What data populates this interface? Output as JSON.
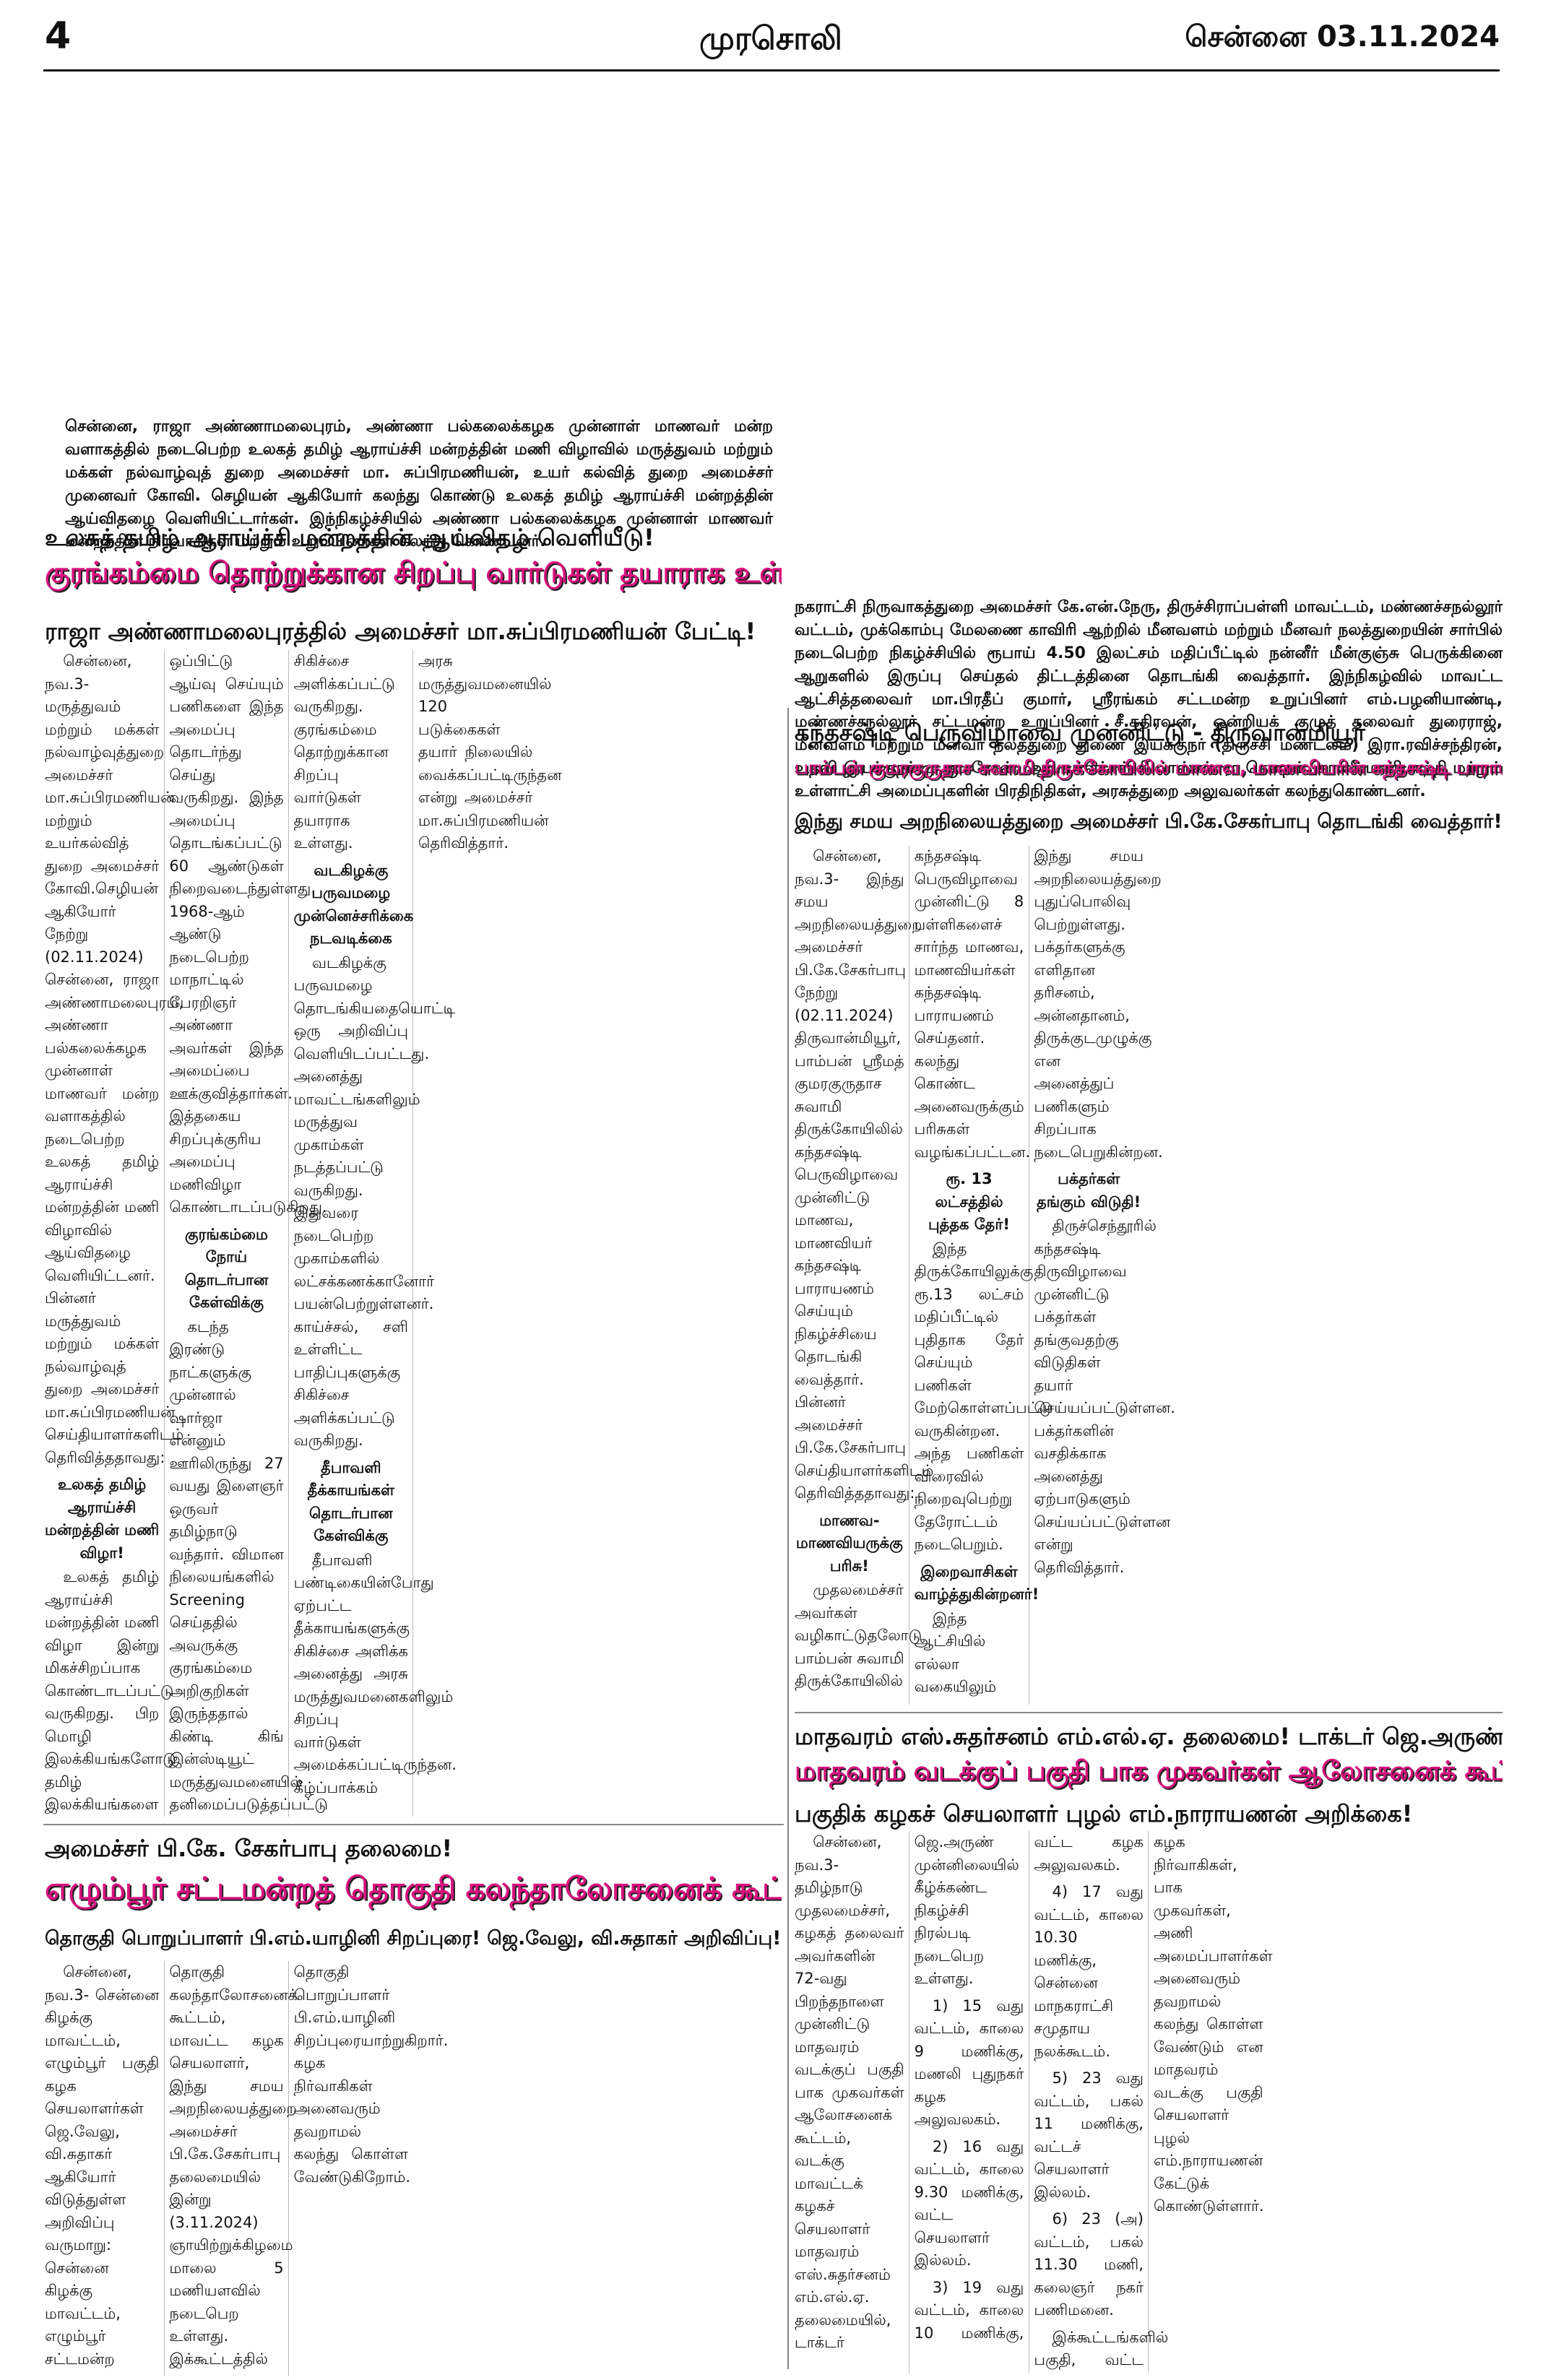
{
  "header": {
    "page_number": "4",
    "paper": "முரசொலி",
    "dateline": "சென்னை 03.11.2024"
  },
  "captions": [
    "சென்னை, ராஜா அண்ணாமலைபுரம், அண்ணா பல்கலைக்கழக முன்னாள் மாணவர் மன்ற வளாகத்தில் நடைபெற்ற உலகத் தமிழ் ஆராய்ச்சி மன்றத்தின் மணி விழாவில் மருத்துவம் மற்றும் மக்கள் நல்வாழ்வுத் துறை அமைச்சர் மா. சுப்பிரமணியன், உயர் கல்வித் துறை அமைச்சர் முனைவர் கோவி. செழியன் ஆகியோர் கலந்து கொண்டு உலகத் தமிழ் ஆராய்ச்சி மன்றத்தின் ஆய்விதழை வெளியிட்டார்கள். இந்நிகழ்ச்சியில் அண்ணா பல்கலைக்கழக முன்னாள் மாணவர் மன்றத்தின் நிர்வாகிகள் மற்றும் உறுப்பினர்கள் கலந்து கொண்டனர்.",
    "நகராட்சி நிருவாகத்துறை அமைச்சர் கே.என்.நேரு, திருச்சிராப்பள்ளி மாவட்டம், மண்ணச்சநல்லூர் வட்டம், முக்கொம்பு மேலணை காவிரி ஆற்றில் மீனவளம் மற்றும் மீனவர் நலத்துறையின் சார்பில் நடைபெற்ற நிகழ்ச்சியில் ரூபாய் 4.50 இலட்சம் மதிப்பீட்டில் நன்னீர் மீன்குஞ்சு பெருக்கினை ஆறுகளில் இருப்பு செய்தல் திட்டத்தினை தொடங்கி வைத்தார். இந்நிகழ்வில் மாவட்ட ஆட்சித்தலைவர் மா.பிரதீப் குமார், ஸ்ரீரங்கம் சட்டமன்ற உறுப்பினர் எம்.பழனியாண்டி, மண்ணச்சநல்லூர் சட்டமன்ற உறுப்பினர் சீ.கதிரவன், ஒன்றியக் குழுத் தலைவர் துரைராஜ், மீனவளம் மற்றும் மீனவர் நலத்துறை துணை இயக்குநர் (திருச்சி மண்டலம்) இரா.ரவிச்சந்திரன், உதவி இயக்குநர் மு.குமரேசன், ஆய்வாளர்கள் சி.பாஸ்கர், ரா.கௌதம், கா.வீரமணிமாறதி மற்றும் உள்ளாட்சி அமைப்புகளின் பிரதிநிதிகள், அரசுத்துறை அலுவலர்கள் கலந்துகொண்டனர்."
  ],
  "articles": [
    {
      "kicker": "உலகத் தமிழ் ஆராய்ச்சி மன்றத்தின் ஆய்விதழ் வெளியீடு!",
      "headline": "குரங்கம்மை தொற்றுக்கான சிறப்பு வார்டுகள் தயாராக உள்ளது!",
      "deck": "ராஜா அண்ணாமலைபுரத்தில் அமைச்சர் மா.சுப்பிரமணியன் பேட்டி!",
      "body": [
        {
          "text": "சென்னை, நவ.3- மருத்துவம் மற்றும் மக்கள் நல்வாழ்வுத்துறை அமைச்சர் மா.சுப்பிரமணியன் மற்றும் உயர்கல்வித் துறை அமைச்சர் கோவி.செழியன் ஆகியோர் நேற்று (02.11.2024) சென்னை, ராஜா அண்ணாமலைபுரம், அண்ணா பல்கலைக்கழக முன்னாள் மாணவர் மன்ற வளாகத்தில் நடைபெற்ற உலகத் தமிழ் ஆராய்ச்சி மன்றத்தின் மணி விழாவில் ஆய்விதழை வெளியிட்டனர். பின்னர் மருத்துவம் மற்றும் மக்கள் நல்வாழ்வுத் துறை அமைச்சர் மா.சுப்பிரமணியன் செய்தியாளர்களிடம் தெரிவித்ததாவது:"
        },
        {
          "heading": "உலகத் தமிழ் ஆராய்ச்சி மன்றத்தின் மணி விழா!",
          "text": "உலகத் தமிழ் ஆராய்ச்சி மன்றத்தின் மணி விழா இன்று மிகச்சிறப்பாக கொண்டாடப்பட்டு வருகிறது. பிற மொழி இலக்கியங்களோடு தமிழ் இலக்கியங்களை ஒப்பிட்டு ஆய்வு செய்யும் பணிகளை இந்த அமைப்பு தொடர்ந்து செய்து வருகிறது. இந்த அமைப்பு தொடங்கப்பட்டு 60 ஆண்டுகள் நிறைவடைந்துள்ளது. 1968-ஆம் ஆண்டு நடைபெற்ற மாநாட்டில் பேரறிஞர் அண்ணா அவர்கள் இந்த அமைப்பை ஊக்குவித்தார்கள். இத்தகைய சிறப்புக்குரிய அமைப்பு மணிவிழா கொண்டாடப்படுகிறது."
        },
        {
          "heading": "குரங்கம்மை நோய் தொடர்பான கேள்விக்கு",
          "text": "கடந்த இரண்டு நாட்களுக்கு முன்னால் ஷார்ஜா என்னும் ஊரிலிருந்து 27 வயது இளைஞர் ஒருவர் தமிழ்நாடு வந்தார். விமான நிலையங்களில் Screening செய்ததில் அவருக்கு குரங்கம்மை அறிகுறிகள் இருந்ததால் கிண்டி கிங் இன்ஸ்டியூட் மருத்துவமனையில் தனிமைப்படுத்தப்பட்டு சிகிச்சை அளிக்கப்பட்டு வருகிறது. குரங்கம்மை தொற்றுக்கான சிறப்பு வார்டுகள் தயாராக உள்ளது."
        },
        {
          "heading": "வடகிழக்கு பருவமழை முன்னெச்சரிக்கை நடவடிக்கை",
          "text": "வடகிழக்கு பருவமழை தொடங்கியதையொட்டி ஒரு அறிவிப்பு வெளியிடப்பட்டது. அனைத்து மாவட்டங்களிலும் மருத்துவ முகாம்கள் நடத்தப்பட்டு வருகிறது. இதுவரை நடைபெற்ற முகாம்களில் லட்சக்கணக்கானோர் பயன்பெற்றுள்ளனர். காய்ச்சல், சளி உள்ளிட்ட பாதிப்புகளுக்கு சிகிச்சை அளிக்கப்பட்டு வருகிறது."
        },
        {
          "heading": "தீபாவளி தீக்காயங்கள் தொடர்பான கேள்விக்கு",
          "text": "தீபாவளி பண்டிகையின்போது ஏற்பட்ட தீக்காயங்களுக்கு சிகிச்சை அளிக்க அனைத்து அரசு மருத்துவமனைகளிலும் சிறப்பு வார்டுகள் அமைக்கப்பட்டிருந்தன. கீழ்ப்பாக்கம் அரசு மருத்துவமனையில் 120 படுக்கைகள் தயார் நிலையில் வைக்கப்பட்டிருந்தன என்று அமைச்சர் மா.சுப்பிரமணியன் தெரிவித்தார்."
        }
      ]
    },
    {
      "kicker": "கந்தசஷ்டி பெருவிழாவை முன்னிட்டு - திருவான்மியூர்",
      "headline": "பாம்பன் குமரகுருதாச சுவாமி திருக்கோயிலில் மாணவ, மாணவியரின் கந்தசஷ்டி பாராயணம்!",
      "deck": "இந்து சமய அறநிலையத்துறை அமைச்சர் பி.கே.சேகர்பாபு தொடங்கி வைத்தார்!",
      "body": [
        {
          "text": "சென்னை, நவ.3- இந்து சமய அறநிலையத்துறை அமைச்சர் பி.கே.சேகர்பாபு நேற்று (02.11.2024) திருவான்மியூர், பாம்பன் ஸ்ரீமத் குமரகுருதாச சுவாமி திருக்கோயிலில் கந்தசஷ்டி பெருவிழாவை முன்னிட்டு மாணவ, மாணவியர் கந்தசஷ்டி பாராயணம் செய்யும் நிகழ்ச்சியை தொடங்கி வைத்தார். பின்னர் அமைச்சர் பி.கே.சேகர்பாபு செய்தியாளர்களிடம் தெரிவித்ததாவது:"
        },
        {
          "heading": "மாணவ-மாணவியருக்கு பரிசு!",
          "text": "முதலமைச்சர் அவர்கள் வழிகாட்டுதலோடு பாம்பன் சுவாமி திருக்கோயிலில் கந்தசஷ்டி பெருவிழாவை முன்னிட்டு 8 பள்ளிகளைச் சார்ந்த மாணவ, மாணவியர்கள் கந்தசஷ்டி பாராயணம் செய்தனர். கலந்து கொண்ட அனைவருக்கும் பரிசுகள் வழங்கப்பட்டன."
        },
        {
          "heading": "ரூ. 13 லட்சத்தில் புத்தக தேர்!",
          "text": "இந்த திருக்கோயிலுக்கு ரூ.13 லட்சம் மதிப்பீட்டில் புதிதாக தேர் செய்யும் பணிகள் மேற்கொள்ளப்பட்டு வருகின்றன. அந்த பணிகள் விரைவில் நிறைவுபெற்று தேரோட்டம் நடைபெறும்."
        },
        {
          "heading": "இறைவாசிகள் வாழ்த்துகின்றனர்!",
          "text": "இந்த ஆட்சியில் எல்லா வகையிலும் இந்து சமய அறநிலையத்துறை புதுப்பொலிவு பெற்றுள்ளது. பக்தர்களுக்கு எளிதான தரிசனம், அன்னதானம், திருக்குடமுழுக்கு என அனைத்துப் பணிகளும் சிறப்பாக நடைபெறுகின்றன."
        },
        {
          "heading": "பக்தர்கள் தங்கும் விடுதி!",
          "text": "திருச்செந்தூரில் கந்தசஷ்டி திருவிழாவை முன்னிட்டு பக்தர்கள் தங்குவதற்கு விடுதிகள் தயார் செய்யப்பட்டுள்ளன. பக்தர்களின் வசதிக்காக அனைத்து ஏற்பாடுகளும் செய்யப்பட்டுள்ளன என்று தெரிவித்தார்."
        }
      ]
    },
    {
      "kicker": "அமைச்சர் பி.கே. சேகர்பாபு தலைமை!",
      "headline": "எழும்பூர் சட்டமன்றத் தொகுதி கலந்தாலோசனைக் கூட்டம்!",
      "deck": "தொகுதி பொறுப்பாளர் பி.எம்.யாழினி சிறப்புரை! ஜெ.வேலு, வி.சுதாகர் அறிவிப்பு!",
      "body": [
        {
          "text": "சென்னை, நவ.3- சென்னை கிழக்கு மாவட்டம், எழும்பூர் பகுதி கழக செயலாளர்கள் ஜெ.வேலு, வி.சுதாகர் ஆகியோர் விடுத்துள்ள அறிவிப்பு வருமாறு: சென்னை கிழக்கு மாவட்டம், எழும்பூர் சட்டமன்ற தொகுதி கலந்தாலோசனைக் கூட்டம், மாவட்ட கழக செயலாளர், இந்து சமய அறநிலையத்துறை அமைச்சர் பி.கே.சேகர்பாபு தலைமையில் இன்று (3.11.2024) ஞாயிற்றுக்கிழமை மாலை 5 மணியளவில் நடைபெற உள்ளது. இக்கூட்டத்தில் தொகுதி பொறுப்பாளர் பி.எம்.யாழினி சிறப்புரையாற்றுகிறார். கழக நிர்வாகிகள் அனைவரும் தவறாமல் கலந்து கொள்ள வேண்டுகிறோம்."
        }
      ]
    },
    {
      "kicker": "மாதவரம் எஸ்.சுதர்சனம் எம்.எல்.ஏ. தலைமை! டாக்டர் ஜெ.அருண் முன்னிலை!",
      "headline": "மாதவரம் வடக்குப் பகுதி பாக முகவர்கள் ஆலோசனைக் கூட்டம்!",
      "deck": "பகுதிக் கழகச் செயலாளர் புழல் எம்.நாராயணன் அறிக்கை!",
      "body": [
        {
          "text": "சென்னை, நவ.3- தமிழ்நாடு முதலமைச்சர், கழகத் தலைவர் அவர்களின் 72-வது பிறந்தநாளை முன்னிட்டு மாதவரம் வடக்குப் பகுதி பாக முகவர்கள் ஆலோசனைக் கூட்டம், வடக்கு மாவட்டக் கழகச் செயலாளர் மாதவரம் எஸ்.சுதர்சனம் எம்.எல்.ஏ. தலைமையில், டாக்டர் ஜெ.அருண் முன்னிலையில் கீழ்க்கண்ட நிகழ்ச்சி நிரல்படி நடைபெற உள்ளது."
        },
        {
          "text": "1) 15 வது வட்டம், காலை 9 மணிக்கு, மணலி புதுநகர் கழக அலுவலகம்."
        },
        {
          "text": "2) 16 வது வட்டம், காலை 9.30 மணிக்கு, வட்ட செயலாளர் இல்லம்."
        },
        {
          "text": "3) 19 வது வட்டம், காலை 10 மணிக்கு, வட்ட கழக அலுவலகம்."
        },
        {
          "text": "4) 17 வது வட்டம், காலை 10.30 மணிக்கு, சென்னை மாநகராட்சி சமுதாய நலக்கூடம்."
        },
        {
          "text": "5) 23 வது வட்டம், பகல் 11 மணிக்கு, வட்டச் செயலாளர் இல்லம்."
        },
        {
          "text": "6) 23 (அ) வட்டம், பகல் 11.30 மணி, கலைஞர் நகர் பணிமனை."
        },
        {
          "text": "இக்கூட்டங்களில் பகுதி, வட்ட கழக நிர்வாகிகள், பாக முகவர்கள், அணி அமைப்பாளர்கள் அனைவரும் தவறாமல் கலந்து கொள்ள வேண்டும் என மாதவரம் வடக்கு பகுதி செயலாளர் புழல் எம்.நாராயணன் கேட்டுக் கொண்டுள்ளார்."
        }
      ]
    }
  ]
}
